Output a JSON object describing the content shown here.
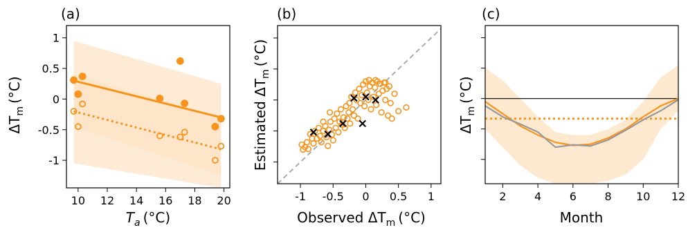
{
  "chart_data": [
    {
      "type": "scatter",
      "panel_label": "(a)",
      "xlabel_base": "T",
      "xlabel_sub": "a",
      "xlabel_unit": "(°C)",
      "ylabel_base": "ΔT",
      "ylabel_sub": "m",
      "ylabel_unit": "(°C)",
      "xlim": [
        9.2,
        20.4
      ],
      "ylim": [
        -1.45,
        1.2
      ],
      "xticks": [
        10,
        12,
        14,
        16,
        18,
        20
      ],
      "xtick_labels": [
        "10",
        "12",
        "14",
        "16",
        "18",
        "20"
      ],
      "yticks": [
        1,
        0.5,
        0,
        -0.5,
        -1
      ],
      "ytick_labels": [
        "1",
        "0.5",
        "0",
        "-0.5",
        "-1"
      ],
      "colors": {
        "series": "#f7941d",
        "band": "#fde3c4"
      },
      "bands": [
        {
          "x": [
            9.7,
            19.8
          ],
          "upper": [
            0.95,
            0.25
          ],
          "lower": [
            -0.45,
            -1.25
          ]
        },
        {
          "x": [
            9.7,
            19.8
          ],
          "upper": [
            0.4,
            -0.3
          ],
          "lower": [
            -1.05,
            -1.45
          ]
        }
      ],
      "lines": [
        {
          "style": "solid",
          "x": [
            9.7,
            19.8
          ],
          "y": [
            0.3,
            -0.3
          ]
        },
        {
          "style": "dotted",
          "x": [
            9.7,
            19.8
          ],
          "y": [
            -0.2,
            -0.82
          ]
        }
      ],
      "series": [
        {
          "marker": "filled",
          "points": [
            [
              9.7,
              0.31
            ],
            [
              10.0,
              0.08
            ],
            [
              10.3,
              0.37
            ],
            [
              15.6,
              0.01
            ],
            [
              17.0,
              0.62
            ],
            [
              17.3,
              -0.07
            ],
            [
              19.4,
              -0.45
            ],
            [
              19.8,
              -0.32
            ]
          ]
        },
        {
          "marker": "open",
          "points": [
            [
              9.7,
              -0.2
            ],
            [
              10.0,
              -0.45
            ],
            [
              10.3,
              -0.08
            ],
            [
              15.6,
              -0.6
            ],
            [
              17.0,
              -0.62
            ],
            [
              17.3,
              -0.54
            ],
            [
              19.4,
              -1.0
            ],
            [
              19.8,
              -0.77
            ]
          ]
        }
      ]
    },
    {
      "type": "scatter",
      "panel_label": "(b)",
      "xlabel_base": "Observed ΔT",
      "xlabel_sub": "m",
      "xlabel_unit": "(°C)",
      "ylabel_base": "Estimated ΔT",
      "ylabel_sub": "m",
      "ylabel_unit": "(°C)",
      "xlim": [
        -1.35,
        1.15
      ],
      "ylim": [
        -1.35,
        1.2
      ],
      "xticks": [
        -1,
        -0.5,
        0,
        0.5,
        1
      ],
      "xtick_labels": [
        "-1",
        "-0.5",
        "0",
        "0.5",
        "1"
      ],
      "yticks": [
        1,
        0.5,
        0,
        -0.5,
        -1
      ],
      "ytick_labels": [
        "",
        "",
        "",
        "",
        ""
      ],
      "colors": {
        "open": "#f7941d",
        "cross": "#000000",
        "diagonal": "#aaaaaa"
      },
      "diagonal": [
        [
          -1.35,
          -1.35
        ],
        [
          1.15,
          1.15
        ]
      ],
      "open_points": [
        [
          -0.98,
          -0.72
        ],
        [
          -0.96,
          -0.8
        ],
        [
          -0.93,
          -0.76
        ],
        [
          -0.9,
          -0.68
        ],
        [
          -0.88,
          -0.79
        ],
        [
          -0.85,
          -0.55
        ],
        [
          -0.82,
          -0.62
        ],
        [
          -0.8,
          -0.7
        ],
        [
          -0.78,
          -0.5
        ],
        [
          -0.75,
          -0.62
        ],
        [
          -0.72,
          -0.45
        ],
        [
          -0.7,
          -0.58
        ],
        [
          -0.68,
          -0.68
        ],
        [
          -0.65,
          -0.5
        ],
        [
          -0.62,
          -0.42
        ],
        [
          -0.6,
          -0.6
        ],
        [
          -0.58,
          -0.74
        ],
        [
          -0.56,
          -0.48
        ],
        [
          -0.54,
          -0.35
        ],
        [
          -0.52,
          -0.56
        ],
        [
          -0.5,
          -0.65
        ],
        [
          -0.48,
          -0.3
        ],
        [
          -0.46,
          -0.45
        ],
        [
          -0.44,
          -0.22
        ],
        [
          -0.42,
          -0.52
        ],
        [
          -0.4,
          -0.35
        ],
        [
          -0.38,
          -0.15
        ],
        [
          -0.36,
          -0.4
        ],
        [
          -0.34,
          -0.28
        ],
        [
          -0.32,
          -0.45
        ],
        [
          -0.3,
          -0.1
        ],
        [
          -0.28,
          -0.3
        ],
        [
          -0.26,
          -0.2
        ],
        [
          -0.24,
          -0.38
        ],
        [
          -0.22,
          0.05
        ],
        [
          -0.2,
          -0.15
        ],
        [
          -0.18,
          -0.25
        ],
        [
          -0.16,
          0.12
        ],
        [
          -0.14,
          0.0
        ],
        [
          -0.12,
          -0.3
        ],
        [
          -0.1,
          0.18
        ],
        [
          -0.08,
          -0.05
        ],
        [
          -0.06,
          0.08
        ],
        [
          -0.04,
          0.25
        ],
        [
          -0.02,
          -0.1
        ],
        [
          0.0,
          0.3
        ],
        [
          0.02,
          0.12
        ],
        [
          0.04,
          0.0
        ],
        [
          0.06,
          0.22
        ],
        [
          0.08,
          -0.15
        ],
        [
          0.1,
          0.28
        ],
        [
          0.12,
          0.05
        ],
        [
          0.14,
          0.2
        ],
        [
          0.16,
          -0.08
        ],
        [
          0.18,
          0.3
        ],
        [
          0.2,
          0.1
        ],
        [
          0.22,
          0.26
        ],
        [
          0.24,
          -0.2
        ],
        [
          0.26,
          0.15
        ],
        [
          0.28,
          0.28
        ],
        [
          0.3,
          0.0
        ],
        [
          0.32,
          0.18
        ],
        [
          0.34,
          -0.25
        ],
        [
          0.36,
          0.22
        ],
        [
          0.38,
          -0.05
        ],
        [
          0.4,
          -0.3
        ],
        [
          0.44,
          0.1
        ],
        [
          0.5,
          -0.18
        ],
        [
          0.62,
          -0.12
        ],
        [
          0.05,
          0.32
        ],
        [
          -0.25,
          -0.05
        ],
        [
          -0.55,
          -0.2
        ],
        [
          -0.65,
          -0.35
        ],
        [
          0.15,
          0.32
        ],
        [
          0.3,
          0.28
        ]
      ],
      "cross_points": [
        [
          -0.8,
          -0.52
        ],
        [
          -0.58,
          -0.55
        ],
        [
          -0.35,
          -0.38
        ],
        [
          -0.18,
          0.03
        ],
        [
          -0.05,
          -0.38
        ],
        [
          0.0,
          0.05
        ],
        [
          0.15,
          0.0
        ]
      ]
    },
    {
      "type": "line",
      "panel_label": "(c)",
      "xlabel": "Month",
      "ylabel_base": "ΔT",
      "ylabel_sub": "m",
      "ylabel_unit": "(°C)",
      "xlim": [
        1,
        12
      ],
      "ylim": [
        -1.4,
        1.2
      ],
      "xticks": [
        2,
        4,
        6,
        8,
        10,
        12
      ],
      "xtick_labels": [
        "2",
        "4",
        "6",
        "8",
        "10",
        "12"
      ],
      "yticks": [
        1,
        0.5,
        0,
        -0.5,
        -1
      ],
      "ytick_labels": [
        "",
        "",
        "",
        "",
        ""
      ],
      "colors": {
        "orange": "#f7941d",
        "gray": "#999999",
        "band": "#fde3c4",
        "zero": "#000000"
      },
      "band": {
        "x": [
          1,
          2,
          3,
          4,
          5,
          6,
          7,
          8,
          9,
          10,
          11,
          12
        ],
        "upper": [
          0.5,
          0.3,
          0.0,
          -0.3,
          -0.55,
          -0.6,
          -0.6,
          -0.5,
          -0.35,
          -0.05,
          0.35,
          0.55
        ],
        "lower": [
          -0.5,
          -0.8,
          -1.1,
          -1.3,
          -1.4,
          -1.4,
          -1.4,
          -1.35,
          -1.25,
          -1.0,
          -0.5,
          -0.2
        ]
      },
      "zero_line": 0,
      "dotted_level": -0.33,
      "series": [
        {
          "color_key": "orange",
          "style": "solid",
          "x": [
            1,
            2,
            3,
            4,
            5,
            6,
            7,
            8,
            9,
            10,
            11,
            12
          ],
          "y": [
            -0.05,
            -0.25,
            -0.45,
            -0.6,
            -0.72,
            -0.77,
            -0.75,
            -0.65,
            -0.5,
            -0.3,
            -0.12,
            0.0
          ]
        },
        {
          "color_key": "gray",
          "style": "solid",
          "x": [
            1,
            2,
            3,
            4,
            5,
            6,
            7,
            8,
            9,
            10,
            11,
            12
          ],
          "y": [
            -0.12,
            -0.3,
            -0.42,
            -0.55,
            -0.8,
            -0.76,
            -0.78,
            -0.68,
            -0.52,
            -0.35,
            -0.2,
            -0.02
          ]
        }
      ]
    }
  ]
}
